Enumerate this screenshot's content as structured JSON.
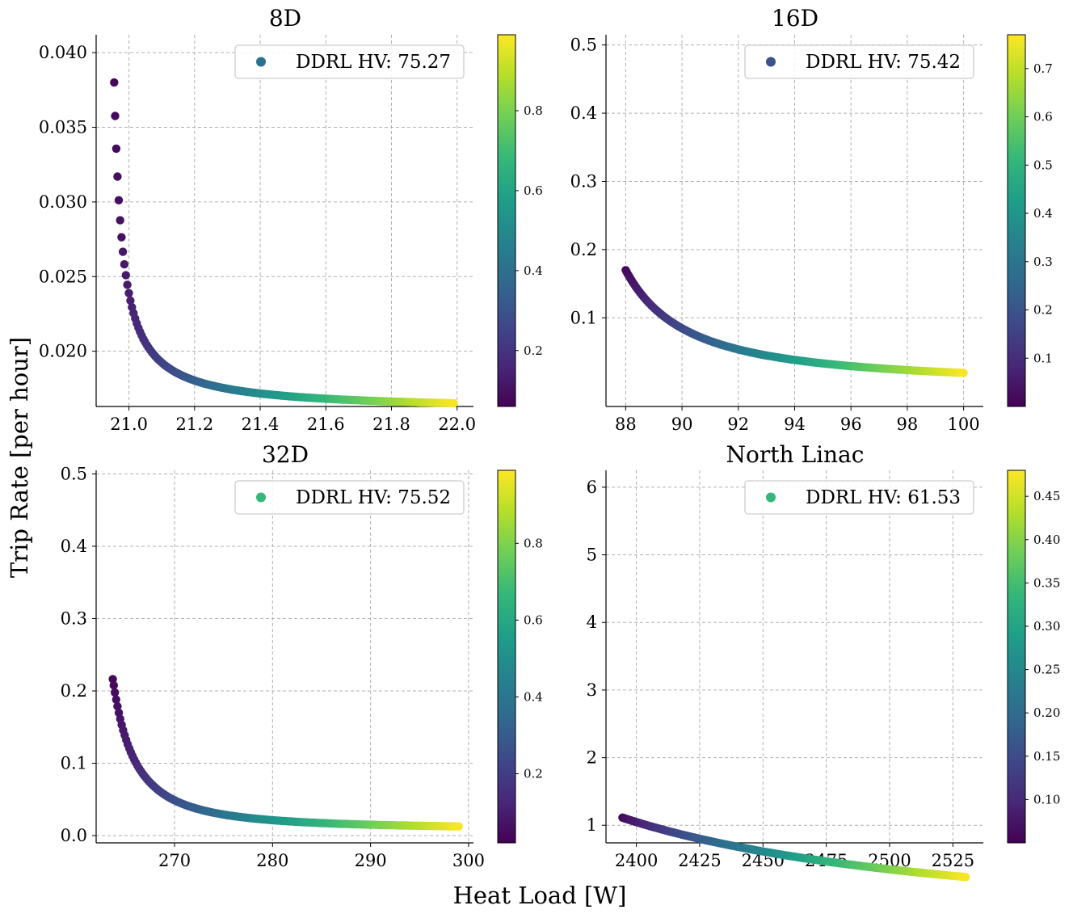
{
  "figure": {
    "xlabel": "Heat Load [W]",
    "ylabel": "Trip Rate [per hour]"
  },
  "colormap": [
    "#440154",
    "#482878",
    "#3e4989",
    "#31688e",
    "#26828e",
    "#1f9e89",
    "#35b779",
    "#6ece58",
    "#b5de2b",
    "#fde725"
  ],
  "chart_data": [
    {
      "type": "scatter",
      "title": "8D",
      "legend": "DDRL HV: 75.27",
      "legend_color": "#2c718e",
      "xlim": [
        20.9,
        22.05
      ],
      "ylim": [
        0.0163,
        0.0412
      ],
      "xticks": [
        21.0,
        21.2,
        21.4,
        21.6,
        21.8,
        22.0
      ],
      "yticks": [
        0.02,
        0.025,
        0.03,
        0.035,
        0.04
      ],
      "x_decimals": 1,
      "y_decimals": 3,
      "x_range": [
        20.955,
        21.99
      ],
      "curve": {
        "a": 0.016,
        "b": 0.00055,
        "c": 20.93,
        "p": 1.0
      },
      "color_range": [
        0.06,
        0.99
      ],
      "colorbar_ticks": [
        0.2,
        0.4,
        0.6,
        0.8
      ],
      "colorbar_decimals": 1
    },
    {
      "type": "scatter",
      "title": "16D",
      "legend": "DDRL HV: 75.42",
      "legend_color": "#3b528b",
      "xlim": [
        87.3,
        100.7
      ],
      "ylim": [
        -0.03,
        0.515
      ],
      "xticks": [
        88,
        90,
        92,
        94,
        96,
        98,
        100
      ],
      "yticks": [
        0.1,
        0.2,
        0.3,
        0.4,
        0.5
      ],
      "x_decimals": 0,
      "y_decimals": 1,
      "x_range": [
        88.0,
        100.0
      ],
      "curve": {
        "a": 0.0,
        "b": 0.7,
        "c": 85.1,
        "p": 1.33
      },
      "color_range": [
        0.0,
        0.77
      ],
      "colorbar_ticks": [
        0.1,
        0.2,
        0.3,
        0.4,
        0.5,
        0.6,
        0.7
      ],
      "colorbar_decimals": 1
    },
    {
      "type": "scatter",
      "title": "32D",
      "legend": "DDRL HV: 75.52",
      "legend_color": "#35b779",
      "xlim": [
        262.0,
        300.5
      ],
      "ylim": [
        -0.01,
        0.505
      ],
      "xticks": [
        270,
        280,
        290,
        300
      ],
      "yticks": [
        0.0,
        0.1,
        0.2,
        0.3,
        0.4,
        0.5
      ],
      "x_decimals": 0,
      "y_decimals": 1,
      "x_range": [
        263.7,
        299.0
      ],
      "curve": {
        "a": 0.0085,
        "b": 1.8,
        "c": 260.0,
        "p": 1.65
      },
      "color_range": [
        0.02,
        0.99
      ],
      "colorbar_ticks": [
        0.2,
        0.4,
        0.6,
        0.8
      ],
      "colorbar_decimals": 1
    },
    {
      "type": "scatter",
      "title": "North Linac",
      "legend": "DDRL HV: 61.53",
      "legend_color": "#35b779",
      "xlim": [
        2388,
        2537
      ],
      "ylim": [
        0.74,
        6.25
      ],
      "xticks": [
        2400,
        2425,
        2450,
        2475,
        2500,
        2525
      ],
      "yticks": [
        1,
        2,
        3,
        4,
        5,
        6
      ],
      "x_decimals": 0,
      "y_decimals": 0,
      "x_range": [
        2394.5,
        2530.0
      ],
      "curve": {
        "a": -0.6,
        "b": 1086.0,
        "c": 2220.0,
        "p": 1.25
      },
      "color_range": [
        0.05,
        0.48
      ],
      "colorbar_ticks": [
        0.1,
        0.15,
        0.2,
        0.25,
        0.3,
        0.35,
        0.4,
        0.45
      ],
      "colorbar_decimals": 2
    }
  ]
}
